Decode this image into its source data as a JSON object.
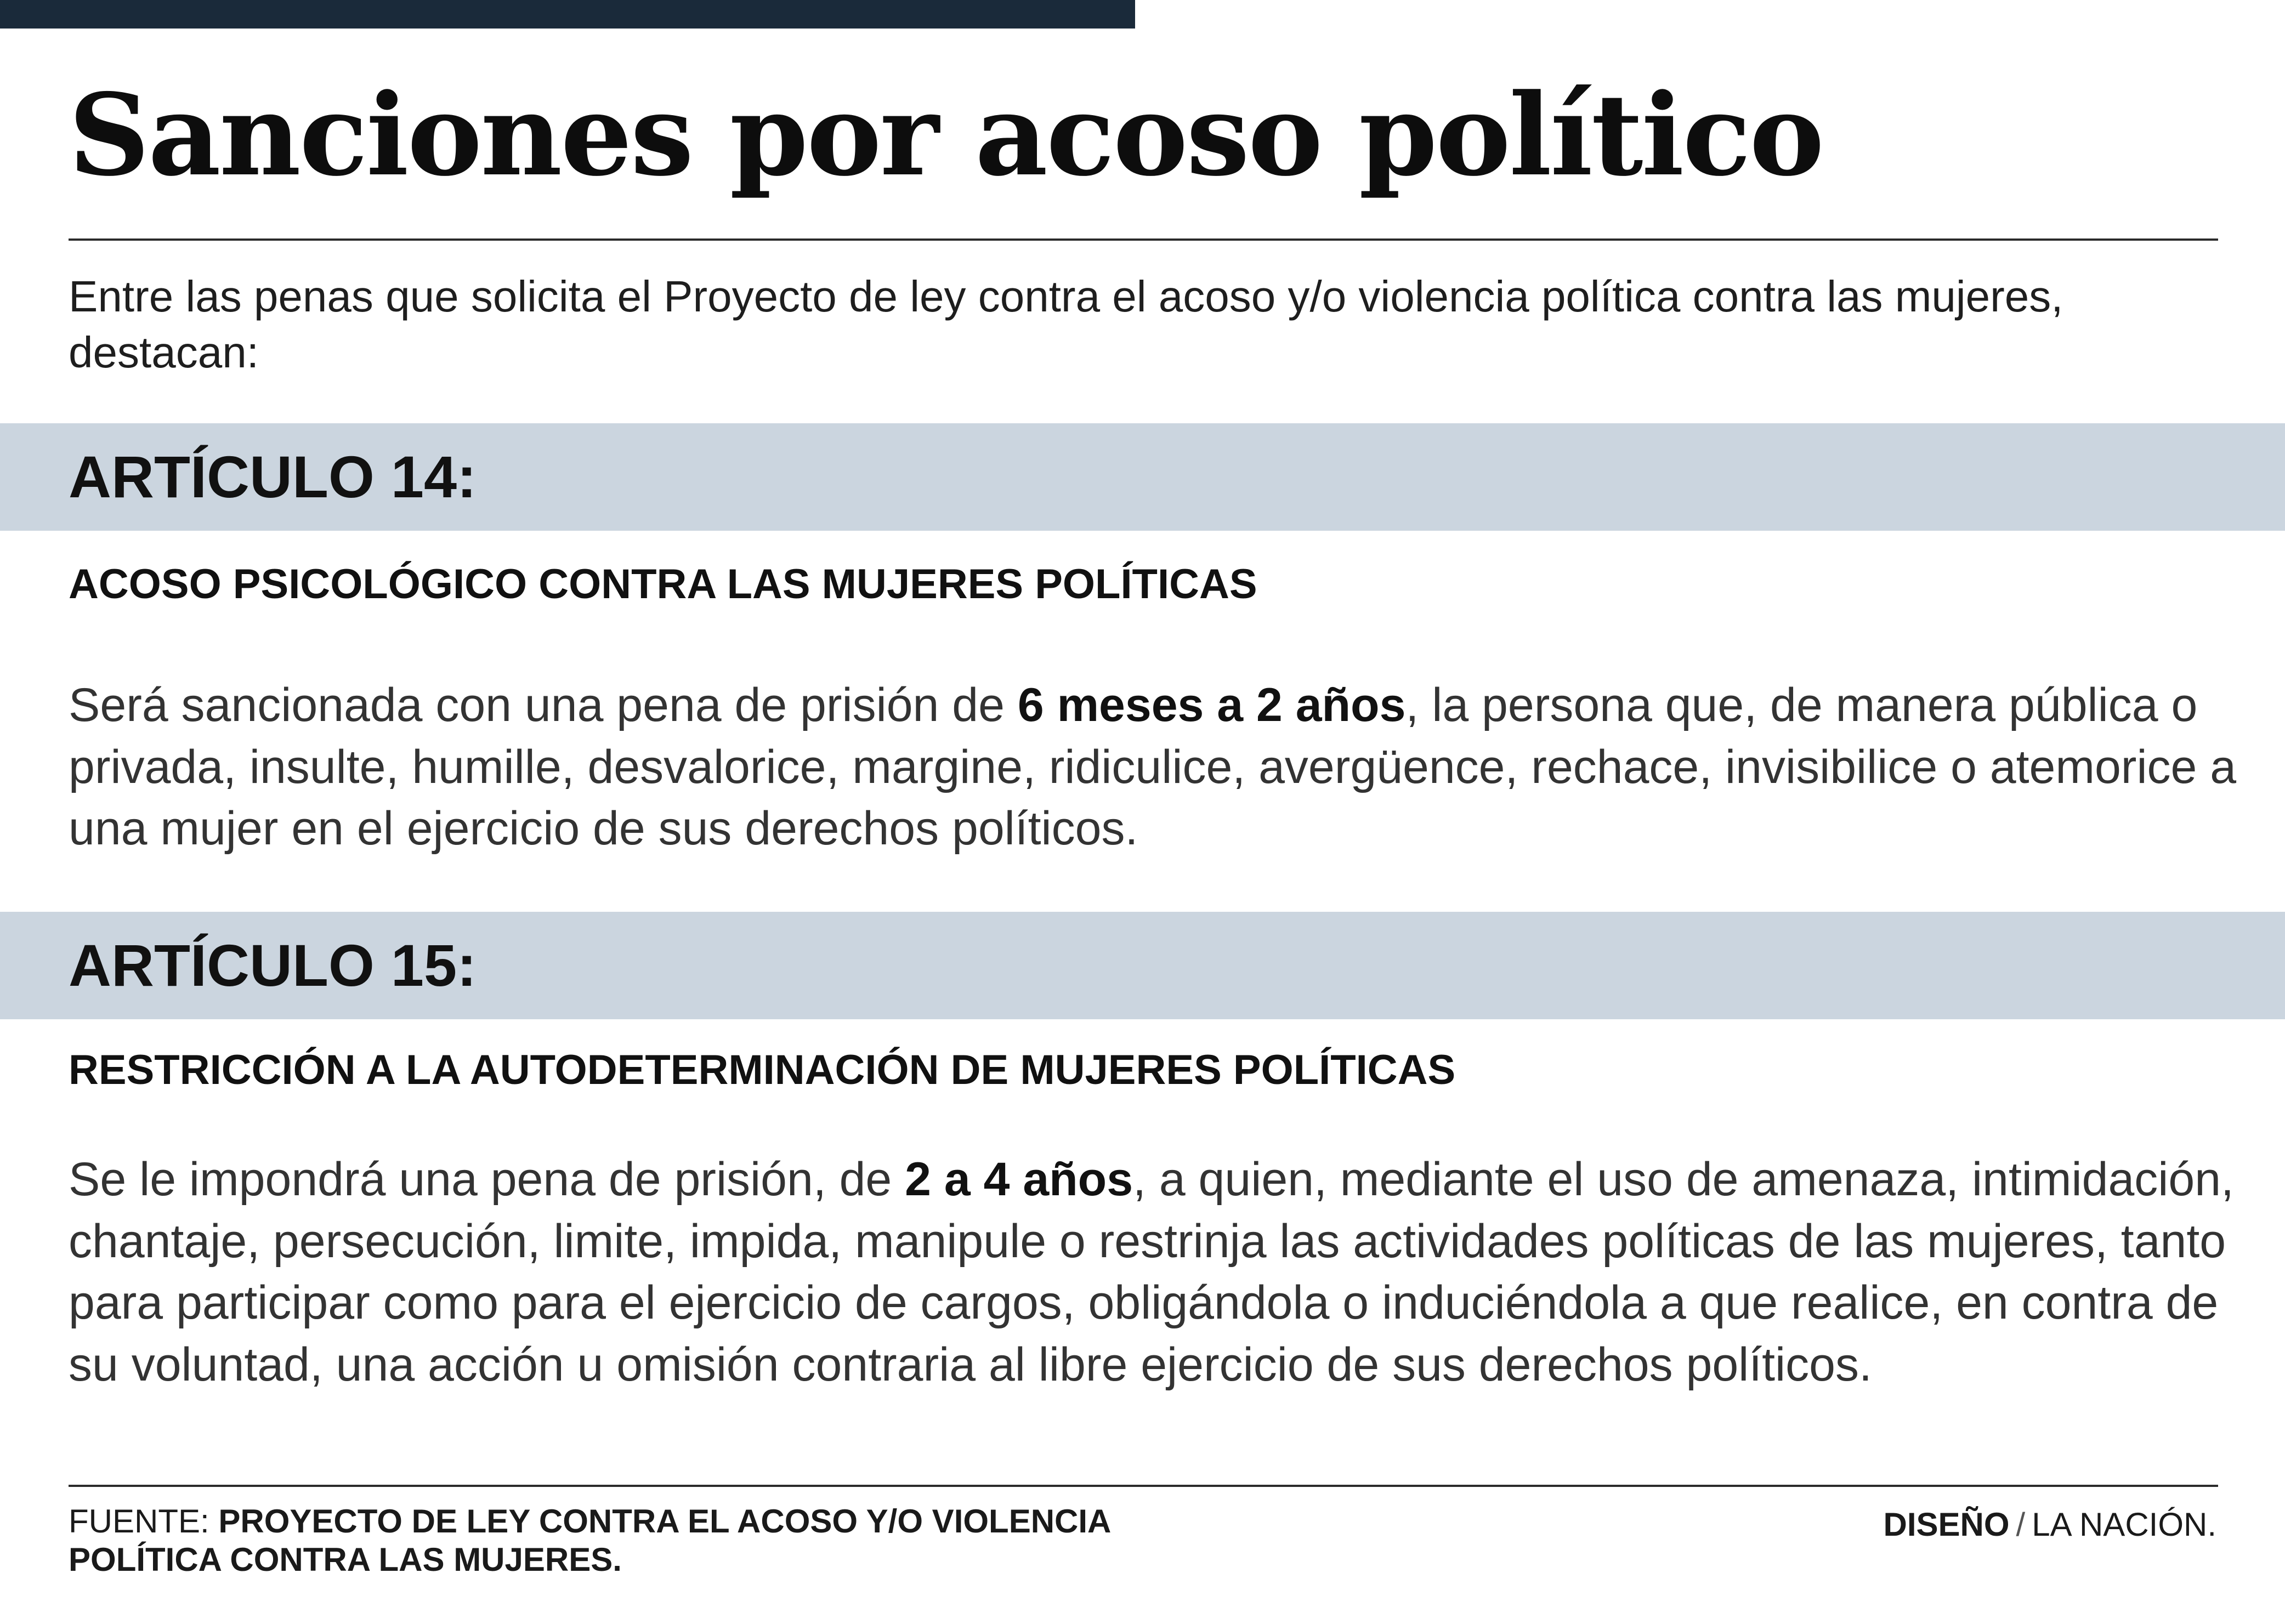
{
  "colors": {
    "top_bar": "#1a2a3a",
    "band": "#cbd5df",
    "text": "#1a1a1a"
  },
  "title": "Sanciones por acoso político",
  "intro": "Entre las penas que solicita el Proyecto de ley contra el acoso y/o violencia política contra las mujeres, destacan:",
  "articles": [
    {
      "label": "ARTÍCULO 14:",
      "subheading": "ACOSO PSICOLÓGICO CONTRA LAS MUJERES POLÍTICAS",
      "body_before": "Será sancionada con una pena de prisión de ",
      "body_bold": "6 meses a 2 años",
      "body_after": ", la persona que, de manera pública o privada, insulte, humille, desvalorice, margine, ridiculice, avergüence, rechace, invisibilice o atemorice a una mujer en el ejercicio de sus derechos políticos."
    },
    {
      "label": "ARTÍCULO 15:",
      "subheading": "RESTRICCIÓN A LA AUTODETERMINACIÓN DE MUJERES POLÍTICAS",
      "body_before": "Se le impondrá una pena de prisión, de ",
      "body_bold": "2 a 4 años",
      "body_after": ", a quien, mediante el uso de amenaza, intimidación, chantaje, persecución, limite, impida, manipule o restrinja las actividades políticas de las mujeres, tanto para participar como para el ejercicio de cargos, obligándola o induciéndola a que realice, en contra de su voluntad, una acción u omisión contraria al libre ejercicio de sus derechos políticos."
    }
  ],
  "footer": {
    "source_label": "FUENTE: ",
    "source_text": "PROYECTO DE LEY CONTRA EL ACOSO Y/O VIOLENCIA POLÍTICA CONTRA LAS MUJERES.",
    "credit_label": "DISEÑO",
    "credit_separator": "/",
    "credit_name": "LA NACIÓN."
  }
}
